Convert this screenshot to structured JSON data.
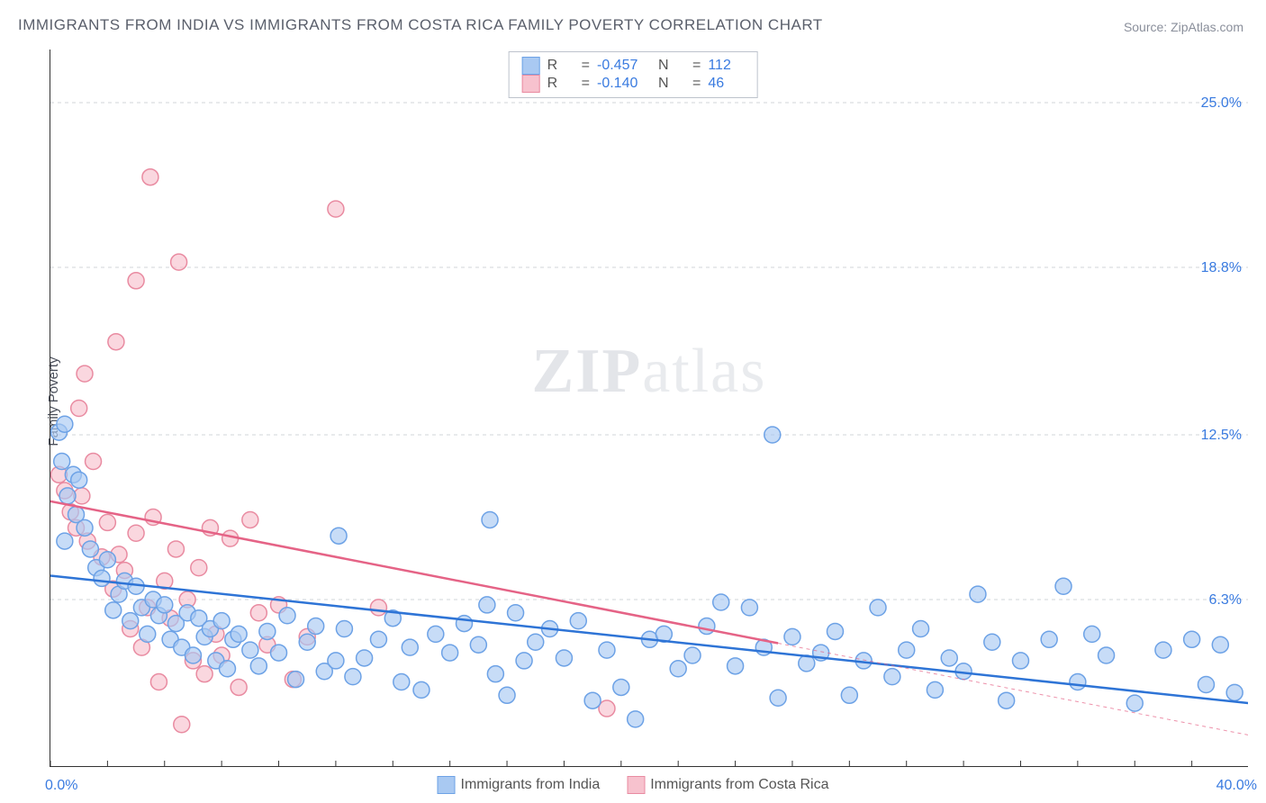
{
  "title": "IMMIGRANTS FROM INDIA VS IMMIGRANTS FROM COSTA RICA FAMILY POVERTY CORRELATION CHART",
  "source_label": "Source: ",
  "source_name": "ZipAtlas.com",
  "ylabel": "Family Poverty",
  "watermark_a": "ZIP",
  "watermark_b": "atlas",
  "chart": {
    "type": "scatter",
    "background_color": "#ffffff",
    "grid_color": "#d0d4da",
    "grid_dash": "4,4",
    "xlim": [
      0,
      42
    ],
    "ylim": [
      0,
      27
    ],
    "x_axis": {
      "min_label": "0.0%",
      "max_label": "40.0%",
      "min_val": 0,
      "max_val": 40,
      "tick_step": 2
    },
    "y_axis": {
      "gridlines": [
        6.3,
        12.5,
        18.8,
        25.0
      ],
      "labels": [
        "6.3%",
        "12.5%",
        "18.8%",
        "25.0%"
      ]
    },
    "marker_radius": 9,
    "marker_stroke_width": 1.5,
    "line_width": 2.5,
    "dash_line_width": 1,
    "dash_pattern": "4,4"
  },
  "series": [
    {
      "id": "india",
      "label": "Immigrants from India",
      "fill_color": "#a9c9f2",
      "stroke_color": "#6da2e6",
      "line_color": "#2e74d6",
      "R": "-0.457",
      "N": "112",
      "trend": {
        "x1": 0,
        "y1": 7.2,
        "x2": 42,
        "y2": 2.4,
        "solid_to_x": 42
      },
      "points": [
        [
          0.3,
          12.6
        ],
        [
          0.4,
          11.5
        ],
        [
          0.5,
          12.9
        ],
        [
          0.6,
          10.2
        ],
        [
          0.8,
          11.0
        ],
        [
          0.9,
          9.5
        ],
        [
          1.0,
          10.8
        ],
        [
          0.5,
          8.5
        ],
        [
          1.2,
          9.0
        ],
        [
          1.4,
          8.2
        ],
        [
          1.6,
          7.5
        ],
        [
          1.8,
          7.1
        ],
        [
          2.0,
          7.8
        ],
        [
          2.2,
          5.9
        ],
        [
          2.4,
          6.5
        ],
        [
          2.6,
          7.0
        ],
        [
          2.8,
          5.5
        ],
        [
          3.0,
          6.8
        ],
        [
          3.2,
          6.0
        ],
        [
          3.4,
          5.0
        ],
        [
          3.6,
          6.3
        ],
        [
          3.8,
          5.7
        ],
        [
          4.0,
          6.1
        ],
        [
          4.2,
          4.8
        ],
        [
          4.4,
          5.4
        ],
        [
          4.6,
          4.5
        ],
        [
          4.8,
          5.8
        ],
        [
          5.0,
          4.2
        ],
        [
          5.2,
          5.6
        ],
        [
          5.4,
          4.9
        ],
        [
          5.6,
          5.2
        ],
        [
          5.8,
          4.0
        ],
        [
          6.0,
          5.5
        ],
        [
          6.2,
          3.7
        ],
        [
          6.4,
          4.8
        ],
        [
          6.6,
          5.0
        ],
        [
          7.0,
          4.4
        ],
        [
          7.3,
          3.8
        ],
        [
          7.6,
          5.1
        ],
        [
          8.0,
          4.3
        ],
        [
          8.3,
          5.7
        ],
        [
          8.6,
          3.3
        ],
        [
          9.0,
          4.7
        ],
        [
          9.3,
          5.3
        ],
        [
          9.6,
          3.6
        ],
        [
          10.0,
          4.0
        ],
        [
          10.3,
          5.2
        ],
        [
          10.6,
          3.4
        ],
        [
          10.1,
          8.7
        ],
        [
          11.0,
          4.1
        ],
        [
          11.5,
          4.8
        ],
        [
          12.0,
          5.6
        ],
        [
          12.3,
          3.2
        ],
        [
          12.6,
          4.5
        ],
        [
          13.0,
          2.9
        ],
        [
          13.5,
          5.0
        ],
        [
          14.0,
          4.3
        ],
        [
          14.5,
          5.4
        ],
        [
          15.0,
          4.6
        ],
        [
          15.3,
          6.1
        ],
        [
          15.6,
          3.5
        ],
        [
          16.0,
          2.7
        ],
        [
          16.3,
          5.8
        ],
        [
          16.6,
          4.0
        ],
        [
          15.4,
          9.3
        ],
        [
          17.0,
          4.7
        ],
        [
          17.5,
          5.2
        ],
        [
          18.0,
          4.1
        ],
        [
          18.5,
          5.5
        ],
        [
          19.0,
          2.5
        ],
        [
          19.5,
          4.4
        ],
        [
          20.0,
          3.0
        ],
        [
          20.5,
          1.8
        ],
        [
          21.0,
          4.8
        ],
        [
          21.5,
          5.0
        ],
        [
          22.0,
          3.7
        ],
        [
          22.5,
          4.2
        ],
        [
          23.0,
          5.3
        ],
        [
          23.5,
          6.2
        ],
        [
          24.0,
          3.8
        ],
        [
          24.5,
          6.0
        ],
        [
          25.0,
          4.5
        ],
        [
          25.5,
          2.6
        ],
        [
          25.3,
          12.5
        ],
        [
          26.0,
          4.9
        ],
        [
          26.5,
          3.9
        ],
        [
          27.0,
          4.3
        ],
        [
          27.5,
          5.1
        ],
        [
          28.0,
          2.7
        ],
        [
          28.5,
          4.0
        ],
        [
          29.0,
          6.0
        ],
        [
          29.5,
          3.4
        ],
        [
          30.0,
          4.4
        ],
        [
          30.5,
          5.2
        ],
        [
          31.0,
          2.9
        ],
        [
          31.5,
          4.1
        ],
        [
          32.0,
          3.6
        ],
        [
          32.5,
          6.5
        ],
        [
          33.0,
          4.7
        ],
        [
          33.5,
          2.5
        ],
        [
          34.0,
          4.0
        ],
        [
          35.0,
          4.8
        ],
        [
          35.5,
          6.8
        ],
        [
          36.0,
          3.2
        ],
        [
          36.5,
          5.0
        ],
        [
          37.0,
          4.2
        ],
        [
          38.0,
          2.4
        ],
        [
          39.0,
          4.4
        ],
        [
          40.0,
          4.8
        ],
        [
          40.5,
          3.1
        ],
        [
          41.0,
          4.6
        ],
        [
          41.5,
          2.8
        ]
      ]
    },
    {
      "id": "costa_rica",
      "label": "Immigrants from Costa Rica",
      "fill_color": "#f7c2ce",
      "stroke_color": "#e98ba1",
      "line_color": "#e56386",
      "R": "-0.140",
      "N": "46",
      "trend": {
        "x1": 0,
        "y1": 10.0,
        "x2": 42,
        "y2": 1.2,
        "solid_to_x": 25.5
      },
      "points": [
        [
          0.3,
          11.0
        ],
        [
          0.5,
          10.4
        ],
        [
          0.7,
          9.6
        ],
        [
          0.9,
          9.0
        ],
        [
          1.1,
          10.2
        ],
        [
          1.3,
          8.5
        ],
        [
          1.5,
          11.5
        ],
        [
          1.0,
          13.5
        ],
        [
          1.8,
          7.9
        ],
        [
          2.0,
          9.2
        ],
        [
          2.2,
          6.7
        ],
        [
          2.4,
          8.0
        ],
        [
          1.2,
          14.8
        ],
        [
          2.6,
          7.4
        ],
        [
          2.8,
          5.2
        ],
        [
          2.3,
          16.0
        ],
        [
          3.0,
          8.8
        ],
        [
          3.2,
          4.5
        ],
        [
          3.4,
          6.0
        ],
        [
          3.0,
          18.3
        ],
        [
          3.6,
          9.4
        ],
        [
          3.8,
          3.2
        ],
        [
          4.0,
          7.0
        ],
        [
          3.5,
          22.2
        ],
        [
          4.2,
          5.6
        ],
        [
          4.4,
          8.2
        ],
        [
          4.6,
          1.6
        ],
        [
          4.8,
          6.3
        ],
        [
          4.5,
          19.0
        ],
        [
          5.0,
          4.0
        ],
        [
          5.2,
          7.5
        ],
        [
          5.4,
          3.5
        ],
        [
          5.6,
          9.0
        ],
        [
          5.8,
          5.0
        ],
        [
          6.0,
          4.2
        ],
        [
          6.3,
          8.6
        ],
        [
          6.6,
          3.0
        ],
        [
          7.0,
          9.3
        ],
        [
          7.3,
          5.8
        ],
        [
          7.6,
          4.6
        ],
        [
          8.0,
          6.1
        ],
        [
          8.5,
          3.3
        ],
        [
          9.0,
          4.9
        ],
        [
          10.0,
          21.0
        ],
        [
          11.5,
          6.0
        ],
        [
          19.5,
          2.2
        ]
      ]
    }
  ],
  "legend_top": {
    "R_prefix": "R",
    "eq": "=",
    "N_prefix": "N"
  },
  "r_label": "R",
  "n_label": "N",
  "eq": "="
}
